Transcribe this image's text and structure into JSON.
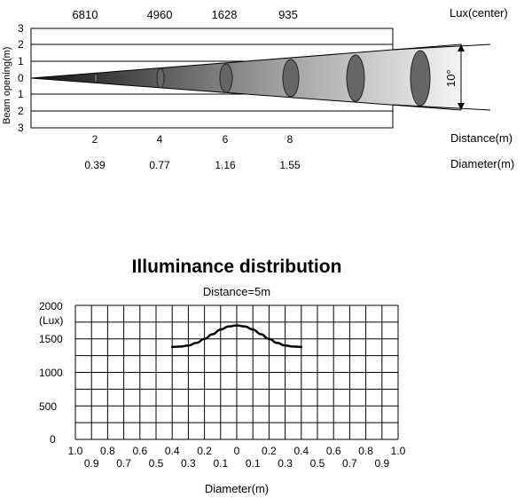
{
  "beam": {
    "lux_values": [
      "6810",
      "4960",
      "1628",
      "935"
    ],
    "lux_label": "Lux(center)",
    "y_axis_label": "Beam opening(m)",
    "y_ticks_top": [
      "3",
      "2",
      "1",
      "0"
    ],
    "y_ticks_bottom": [
      "1",
      "2",
      "3"
    ],
    "distance_values": [
      "2",
      "4",
      "6",
      "8"
    ],
    "distance_label": "Distance(m)",
    "diameter_values": [
      "0.39",
      "0.77",
      "1.16",
      "1.55"
    ],
    "diameter_label": "Diameter(m)",
    "angle_label": "10°",
    "colors": {
      "beam_dark": "#111111",
      "beam_light": "#f4f4f4",
      "ellipse": "#555555"
    }
  },
  "illuminance": {
    "title": "Illuminance distribution",
    "subtitle": "Distance=5m",
    "y_unit": "(Lux)",
    "y_ticks": [
      "2000",
      "1500",
      "1000",
      "500",
      "0"
    ],
    "x_row1": [
      "1.0",
      "0.8",
      "0.6",
      "0.4",
      "0.2",
      "0",
      "0.2",
      "0.4",
      "0.6",
      "0.8",
      "1.0"
    ],
    "x_row2": [
      "0.9",
      "0.7",
      "0.5",
      "0.3",
      "0.1",
      "0.1",
      "0.3",
      "0.5",
      "0.7",
      "0.9"
    ],
    "x_label": "Diameter(m)"
  },
  "chart_data": {
    "type": "line",
    "title": "Illuminance distribution",
    "subtitle": "Distance=5m",
    "xlabel": "Diameter(m)",
    "ylabel": "(Lux)",
    "ylim": [
      0,
      2000
    ],
    "xlim": [
      -1.0,
      1.0
    ],
    "grid": true,
    "x": [
      -0.4,
      -0.35,
      -0.3,
      -0.25,
      -0.2,
      -0.15,
      -0.1,
      -0.05,
      0,
      0.05,
      0.1,
      0.15,
      0.2,
      0.25,
      0.3,
      0.35,
      0.4
    ],
    "values": [
      1380,
      1385,
      1400,
      1440,
      1500,
      1570,
      1640,
      1685,
      1700,
      1685,
      1640,
      1570,
      1500,
      1440,
      1400,
      1385,
      1380
    ]
  }
}
